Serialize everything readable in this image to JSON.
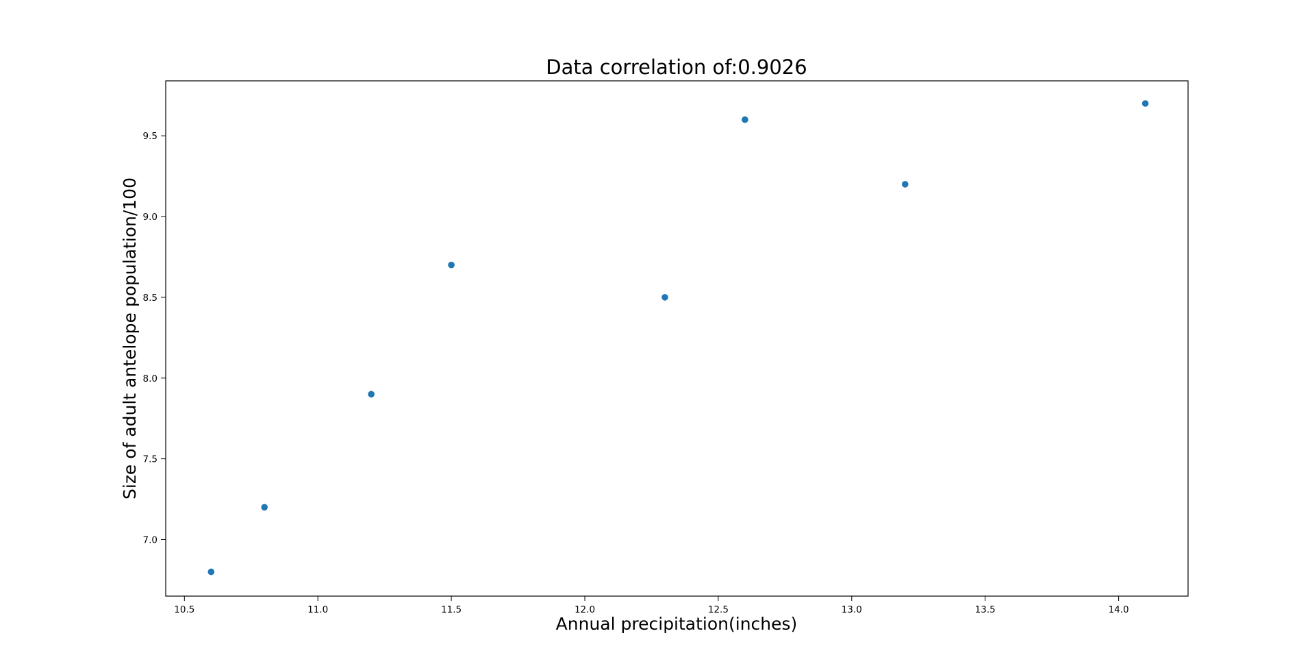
{
  "chart_data": {
    "type": "scatter",
    "title": "Data correlation of:0.9026",
    "xlabel": "Annual precipitation(inches)",
    "ylabel": "Size of adult antelope population/100",
    "xlim": [
      10.43,
      14.26
    ],
    "ylim": [
      6.65,
      9.84
    ],
    "xticks": [
      10.5,
      11.0,
      11.5,
      12.0,
      12.5,
      13.0,
      13.5,
      14.0
    ],
    "xtick_labels": [
      "10.5",
      "11.0",
      "11.5",
      "12.0",
      "12.5",
      "13.0",
      "13.5",
      "14.0"
    ],
    "yticks": [
      7.0,
      7.5,
      8.0,
      8.5,
      9.0,
      9.5
    ],
    "ytick_labels": [
      "7.0",
      "7.5",
      "8.0",
      "8.5",
      "9.0",
      "9.5"
    ],
    "grid": false,
    "legend": "none",
    "marker_color": "#1f77b4",
    "points": [
      {
        "x": 10.6,
        "y": 6.8
      },
      {
        "x": 10.8,
        "y": 7.2
      },
      {
        "x": 11.2,
        "y": 7.9
      },
      {
        "x": 11.5,
        "y": 8.7
      },
      {
        "x": 12.3,
        "y": 8.5
      },
      {
        "x": 12.6,
        "y": 9.6
      },
      {
        "x": 13.2,
        "y": 9.2
      },
      {
        "x": 14.1,
        "y": 9.7
      }
    ]
  }
}
